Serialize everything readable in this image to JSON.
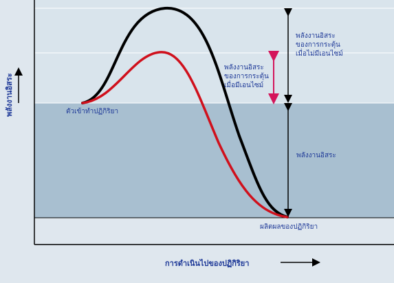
{
  "diagram": {
    "axis": {
      "y_label": "พลังงานอิสระ",
      "x_label": "การดำเนินไปของปฏิกิริยา"
    },
    "labels": {
      "reactants": "ตัวเข้าทำปฏิกิริยา",
      "products": "ผลิตผลของปฏิกิริยา",
      "ea_uncatalyzed": "พลังงานอิสระ\nของการกระตุ้น\nเมื่อไม่มีเอนไซม์",
      "ea_catalyzed": "พลังงานอิสระ\nของการกระตุ้น\nเมื่อมีเอนไซม์",
      "delta_g": "พลังงานอิสระ"
    },
    "curves": [
      {
        "name": "uncatalyzed",
        "color": "#000000"
      },
      {
        "name": "catalyzed",
        "color": "#d0101c"
      }
    ],
    "colors": {
      "upper_band": "#d9e4ec",
      "lower_band": "#a8bfd0",
      "bottom_band": "#dfe7ee",
      "arrow": "#000000",
      "catalyzed_arrow": "#d4145a",
      "text": "#1f3a98"
    }
  }
}
